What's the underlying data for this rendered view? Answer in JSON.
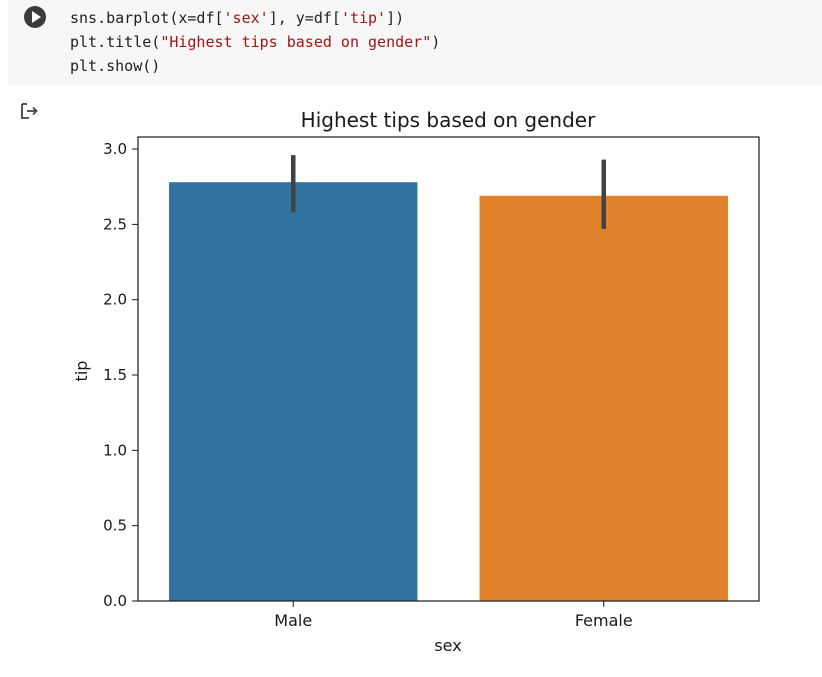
{
  "cell": {
    "code_lines": [
      {
        "parts": [
          {
            "t": "sns.barplot(x=df[",
            "c": ""
          },
          {
            "t": "'sex'",
            "c": "str"
          },
          {
            "t": "], y=df[",
            "c": ""
          },
          {
            "t": "'tip'",
            "c": "str"
          },
          {
            "t": "])",
            "c": ""
          }
        ]
      },
      {
        "parts": [
          {
            "t": "plt.title(",
            "c": ""
          },
          {
            "t": "\"Highest tips based on gender\"",
            "c": "str"
          },
          {
            "t": ")",
            "c": ""
          }
        ]
      },
      {
        "parts": [
          {
            "t": "plt.show()",
            "c": ""
          }
        ]
      }
    ],
    "run_icon": "play-icon",
    "output_icon": "output-arrow-icon"
  },
  "chart_data": {
    "type": "bar",
    "title": "Highest tips based on gender",
    "xlabel": "sex",
    "ylabel": "tip",
    "categories": [
      "Male",
      "Female"
    ],
    "values": [
      2.78,
      2.69
    ],
    "error_low": [
      2.58,
      2.47
    ],
    "error_high": [
      2.96,
      2.93
    ],
    "colors": [
      "#3274a1",
      "#e1812c"
    ],
    "error_color": "#424242",
    "ylim": [
      0,
      3.08
    ],
    "yticks": [
      0.0,
      0.5,
      1.0,
      1.5,
      2.0,
      2.5,
      3.0
    ],
    "ytick_labels": [
      "0.0",
      "0.5",
      "1.0",
      "1.5",
      "2.0",
      "2.5",
      "3.0"
    ],
    "grid": false,
    "legend": "none"
  }
}
